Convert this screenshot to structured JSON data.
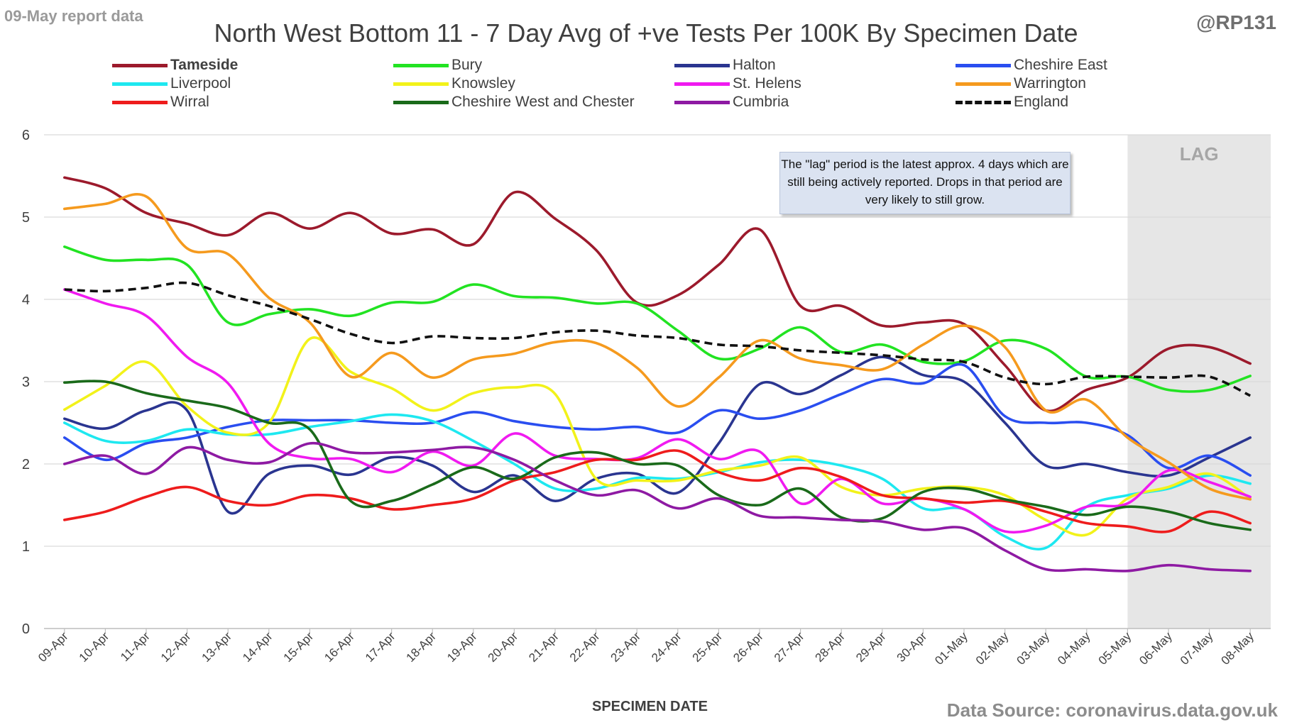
{
  "header": {
    "report_date": "09-May report data",
    "title": "North West Bottom 11 - 7 Day Avg of +ve Tests Per 100K By Specimen Date",
    "handle": "@RP131"
  },
  "footer": {
    "source": "Data Source: coronavirus.data.gov.uk"
  },
  "annotations": {
    "lag_label": "LAG",
    "lag_note": "The \"lag\" period is the latest approx. 4 days which are still being actively reported. Drops in that period are very likely to still grow."
  },
  "colors": {
    "Tameside": "#9c1a2c",
    "Bury": "#22e322",
    "Halton": "#2a3590",
    "Cheshire East": "#2a4ef0",
    "Liverpool": "#1ee8f0",
    "Knowsley": "#f2f21a",
    "St. Helens": "#f01af0",
    "Warrington": "#f59a1e",
    "Wirral": "#ee1c1c",
    "Cheshire West and Chester": "#1a6a1a",
    "Cumbria": "#8e1aa3",
    "England": "#111111",
    "lag_shade": "#e6e6e6",
    "gridline": "#d9d9d9"
  },
  "chart_data": {
    "type": "line",
    "title": "North West Bottom 11 - 7 Day Avg of +ve Tests Per 100K By Specimen Date",
    "xlabel": "SPECIMEN DATE",
    "ylabel": "",
    "ylim": [
      0,
      6
    ],
    "yticks": [
      0,
      1,
      2,
      3,
      4,
      5,
      6
    ],
    "grid": true,
    "legend_position": "top",
    "lag_period": [
      "05-May",
      "08-May"
    ],
    "categories": [
      "09-Apr",
      "10-Apr",
      "11-Apr",
      "12-Apr",
      "13-Apr",
      "14-Apr",
      "15-Apr",
      "16-Apr",
      "17-Apr",
      "18-Apr",
      "19-Apr",
      "20-Apr",
      "21-Apr",
      "22-Apr",
      "23-Apr",
      "24-Apr",
      "25-Apr",
      "26-Apr",
      "27-Apr",
      "28-Apr",
      "29-Apr",
      "30-Apr",
      "01-May",
      "02-May",
      "03-May",
      "04-May",
      "05-May",
      "06-May",
      "07-May",
      "08-May"
    ],
    "series": [
      {
        "name": "Tameside",
        "bold": true,
        "values": [
          5.48,
          5.35,
          5.05,
          4.92,
          4.78,
          5.05,
          4.86,
          5.05,
          4.8,
          4.85,
          4.67,
          5.3,
          4.98,
          4.6,
          3.96,
          4.05,
          4.42,
          4.85,
          3.92,
          3.92,
          3.68,
          3.72,
          3.7,
          3.2,
          2.65,
          2.9,
          3.05,
          3.4,
          3.42,
          3.22
        ]
      },
      {
        "name": "Bury",
        "values": [
          4.64,
          4.48,
          4.48,
          4.42,
          3.72,
          3.82,
          3.88,
          3.8,
          3.96,
          3.97,
          4.18,
          4.04,
          4.02,
          3.95,
          3.95,
          3.62,
          3.28,
          3.4,
          3.66,
          3.36,
          3.45,
          3.24,
          3.25,
          3.5,
          3.4,
          3.06,
          3.06,
          2.9,
          2.9,
          3.07
        ]
      },
      {
        "name": "Halton",
        "values": [
          2.55,
          2.43,
          2.65,
          2.65,
          1.42,
          1.88,
          1.98,
          1.87,
          2.08,
          1.98,
          1.66,
          1.86,
          1.55,
          1.82,
          1.88,
          1.65,
          2.25,
          2.97,
          2.85,
          3.08,
          3.3,
          3.08,
          3.0,
          2.5,
          1.98,
          2.0,
          1.9,
          1.86,
          2.08,
          2.32
        ]
      },
      {
        "name": "Cheshire East",
        "values": [
          2.32,
          2.05,
          2.25,
          2.32,
          2.45,
          2.53,
          2.53,
          2.53,
          2.5,
          2.5,
          2.63,
          2.52,
          2.45,
          2.42,
          2.45,
          2.38,
          2.65,
          2.55,
          2.65,
          2.85,
          3.03,
          2.98,
          3.2,
          2.58,
          2.5,
          2.5,
          2.35,
          1.95,
          2.1,
          1.86
        ]
      },
      {
        "name": "Liverpool",
        "values": [
          2.5,
          2.28,
          2.28,
          2.42,
          2.36,
          2.36,
          2.45,
          2.52,
          2.6,
          2.52,
          2.28,
          2.0,
          1.7,
          1.7,
          1.83,
          1.82,
          1.9,
          2.02,
          2.05,
          1.98,
          1.82,
          1.46,
          1.45,
          1.12,
          0.98,
          1.48,
          1.62,
          1.7,
          1.86,
          1.76
        ]
      },
      {
        "name": "Knowsley",
        "values": [
          2.66,
          2.95,
          3.24,
          2.7,
          2.38,
          2.5,
          3.52,
          3.12,
          2.92,
          2.65,
          2.86,
          2.93,
          2.85,
          1.82,
          1.8,
          1.8,
          1.92,
          1.98,
          2.08,
          1.72,
          1.62,
          1.7,
          1.72,
          1.62,
          1.32,
          1.14,
          1.58,
          1.72,
          1.88,
          1.58
        ]
      },
      {
        "name": "St. Helens",
        "values": [
          4.12,
          3.95,
          3.8,
          3.3,
          2.98,
          2.25,
          2.07,
          2.06,
          1.9,
          2.15,
          1.98,
          2.37,
          2.1,
          2.06,
          2.07,
          2.3,
          2.06,
          2.15,
          1.52,
          1.82,
          1.52,
          1.58,
          1.45,
          1.18,
          1.25,
          1.48,
          1.52,
          1.92,
          1.78,
          1.6
        ]
      },
      {
        "name": "Warrington",
        "values": [
          5.1,
          5.16,
          5.25,
          4.62,
          4.55,
          4.02,
          3.72,
          3.06,
          3.35,
          3.05,
          3.27,
          3.34,
          3.48,
          3.47,
          3.17,
          2.7,
          3.05,
          3.5,
          3.28,
          3.2,
          3.15,
          3.45,
          3.68,
          3.42,
          2.65,
          2.78,
          2.32,
          2.02,
          1.7,
          1.57
        ]
      },
      {
        "name": "Wirral",
        "values": [
          1.32,
          1.42,
          1.6,
          1.72,
          1.55,
          1.5,
          1.62,
          1.58,
          1.45,
          1.5,
          1.58,
          1.8,
          1.9,
          2.05,
          2.05,
          2.16,
          1.9,
          1.8,
          1.95,
          1.84,
          1.62,
          1.58,
          1.53,
          1.55,
          1.42,
          1.28,
          1.24,
          1.18,
          1.42,
          1.28
        ]
      },
      {
        "name": "Cheshire West and Chester",
        "values": [
          2.99,
          3.0,
          2.86,
          2.77,
          2.68,
          2.5,
          2.42,
          1.55,
          1.55,
          1.75,
          1.96,
          1.82,
          2.08,
          2.14,
          2.0,
          1.98,
          1.62,
          1.5,
          1.7,
          1.35,
          1.34,
          1.66,
          1.7,
          1.57,
          1.48,
          1.38,
          1.48,
          1.42,
          1.28,
          1.2
        ]
      },
      {
        "name": "Cumbria",
        "values": [
          2.0,
          2.1,
          1.88,
          2.2,
          2.05,
          2.02,
          2.25,
          2.14,
          2.14,
          2.17,
          2.2,
          2.05,
          1.8,
          1.62,
          1.68,
          1.46,
          1.58,
          1.37,
          1.35,
          1.32,
          1.3,
          1.2,
          1.22,
          0.95,
          0.72,
          0.72,
          0.7,
          0.77,
          0.72,
          0.7
        ]
      },
      {
        "name": "England",
        "dashed": true,
        "values": [
          4.12,
          4.1,
          4.14,
          4.2,
          4.05,
          3.92,
          3.76,
          3.58,
          3.47,
          3.55,
          3.53,
          3.53,
          3.6,
          3.62,
          3.56,
          3.53,
          3.45,
          3.43,
          3.38,
          3.35,
          3.32,
          3.27,
          3.24,
          3.05,
          2.97,
          3.06,
          3.06,
          3.05,
          3.06,
          2.83
        ]
      }
    ]
  }
}
